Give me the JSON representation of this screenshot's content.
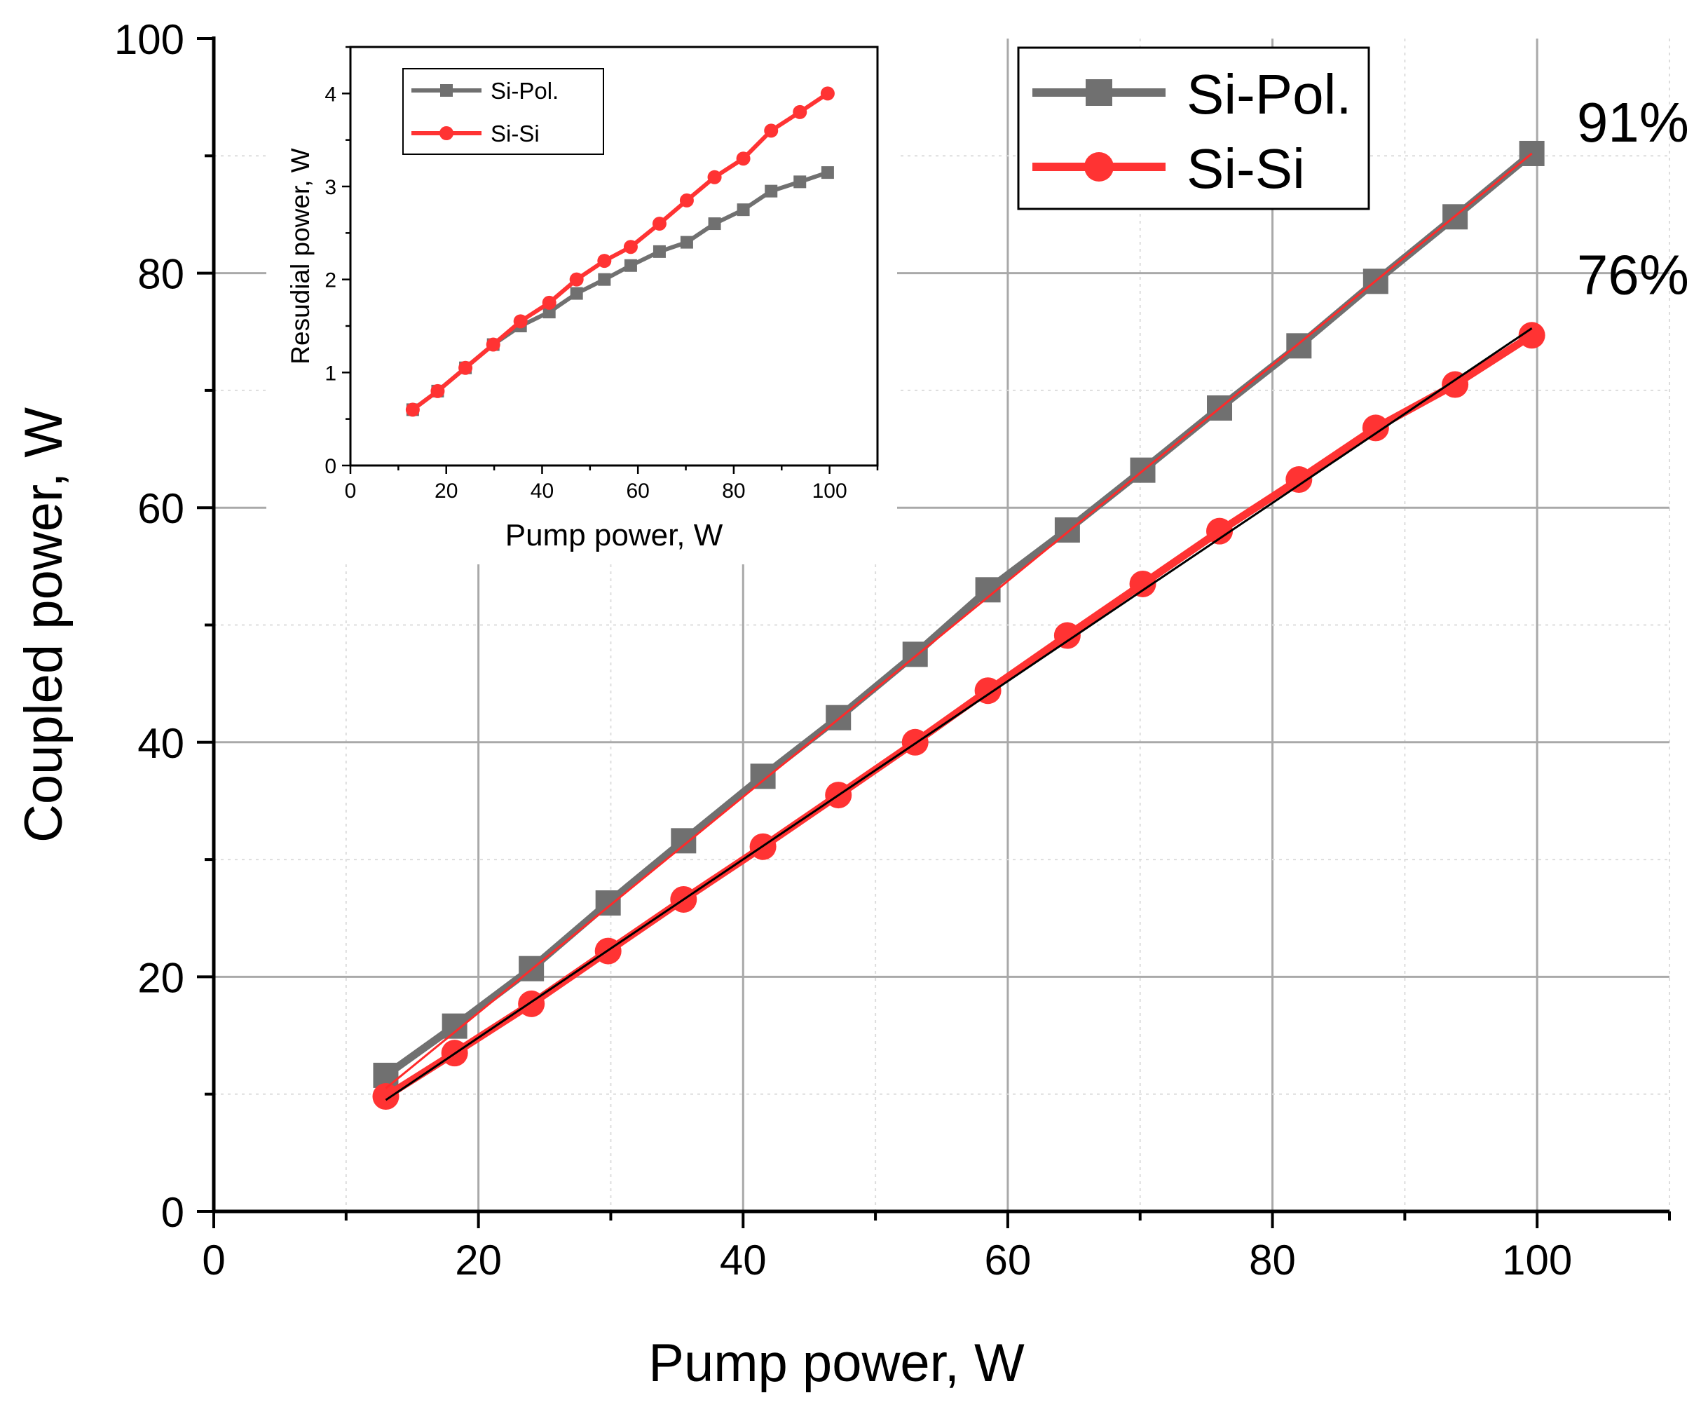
{
  "chart_data": [
    {
      "type": "line",
      "xlabel": "Pump power, W",
      "ylabel": "Coupled power, W",
      "xlim": [
        0,
        110
      ],
      "ylim": [
        0,
        100
      ],
      "x_ticks": [
        "0",
        "20",
        "40",
        "60",
        "80",
        "100"
      ],
      "y_ticks": [
        "0",
        "20",
        "40",
        "60",
        "80",
        "100"
      ],
      "grid": true,
      "legend_position": "top-right",
      "x": [
        13,
        18.2,
        24,
        29.8,
        35.5,
        41.5,
        47.2,
        53,
        58.5,
        64.5,
        70.2,
        76,
        82,
        87.8,
        93.8,
        99.6
      ],
      "series": [
        {
          "name": "Si-Pol.",
          "color": "#707070",
          "marker": "square",
          "values": [
            11.6,
            15.8,
            20.7,
            26.3,
            31.6,
            37.1,
            42.1,
            47.5,
            53.0,
            58.1,
            63.2,
            68.5,
            73.8,
            79.3,
            84.8,
            90.2
          ]
        },
        {
          "name": "Si-Si",
          "color": "#ff3333",
          "marker": "circle",
          "values": [
            9.8,
            13.5,
            17.7,
            22.2,
            26.6,
            31.1,
            35.5,
            40.0,
            44.4,
            49.1,
            53.5,
            58.0,
            62.4,
            66.8,
            70.5,
            74.7
          ]
        }
      ],
      "fit_lines": [
        {
          "series": "Si-Pol.",
          "x_start": 13,
          "x_end": 99.6,
          "y_start": 10.5,
          "y_end": 90.2,
          "color": "#ff2a2a"
        },
        {
          "series": "Si-Si",
          "x_start": 13,
          "x_end": 99.6,
          "y_start": 9.5,
          "y_end": 75.3,
          "color": "#000000"
        }
      ],
      "annotations": [
        {
          "text": "91%",
          "x": 103,
          "y": 93
        },
        {
          "text": "76%",
          "x": 103,
          "y": 80
        }
      ]
    },
    {
      "type": "line",
      "xlabel": "Pump power, W",
      "ylabel": "Resudial power, W",
      "xlim": [
        0,
        110
      ],
      "ylim": [
        0,
        4.5
      ],
      "x_ticks": [
        "0",
        "20",
        "40",
        "60",
        "80",
        "100"
      ],
      "y_ticks": [
        "0",
        "1",
        "2",
        "3",
        "4"
      ],
      "grid": false,
      "legend_position": "top-left",
      "x": [
        13,
        18.2,
        24,
        29.8,
        35.5,
        41.5,
        47.2,
        53,
        58.5,
        64.5,
        70.2,
        76,
        82,
        87.8,
        93.8,
        99.6
      ],
      "series": [
        {
          "name": "Si-Pol.",
          "color": "#707070",
          "marker": "square",
          "values": [
            0.6,
            0.8,
            1.05,
            1.3,
            1.5,
            1.65,
            1.85,
            2.0,
            2.15,
            2.3,
            2.4,
            2.6,
            2.75,
            2.95,
            3.05,
            3.15
          ]
        },
        {
          "name": "Si-Si",
          "color": "#ff3333",
          "marker": "circle",
          "values": [
            0.6,
            0.8,
            1.05,
            1.3,
            1.55,
            1.75,
            2.0,
            2.2,
            2.35,
            2.6,
            2.85,
            3.1,
            3.3,
            3.6,
            3.8,
            4.0
          ]
        }
      ]
    }
  ]
}
